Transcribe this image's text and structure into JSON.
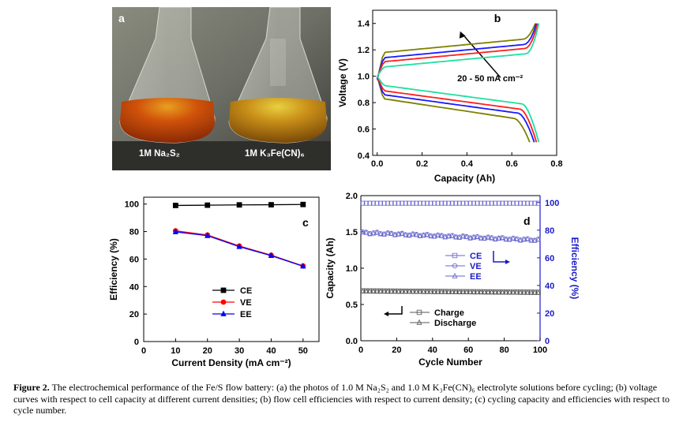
{
  "panel_a": {
    "letter": "a",
    "label_left": "1M Na₂S₂",
    "label_right": "1M K₃Fe(CN)₆",
    "left_liquid_color": "#c84a06",
    "right_liquid_color": "#c98f18"
  },
  "caption": {
    "fig_label": "Figure 2.",
    "text": "The electrochemical performance of the Fe/S flow battery: (a) the photos of 1.0 M Na₂S₂ and 1.0 M K₃Fe(CN)₆ electrolyte solutions before cycling; (b) voltage curves with respect to cell capacity at different current densities; (b) flow cell efficiencies with respect to current density; (c) cycling capacity and efficiencies with respect to cycle number."
  },
  "chart_data": [
    {
      "id": "b",
      "type": "line",
      "letter": "b",
      "xlabel": "Capacity (Ah)",
      "ylabel": "Voltage (V)",
      "xlim": [
        -0.02,
        0.8
      ],
      "ylim": [
        0.4,
        1.5
      ],
      "xticks": [
        "0.0",
        "0.2",
        "0.4",
        "0.6",
        "0.8"
      ],
      "yticks": [
        "0.4",
        "0.6",
        "0.8",
        "1.0",
        "1.2",
        "1.4"
      ],
      "annotation": "20 - 50 mA cm⁻²",
      "series": [
        {
          "color": "#808000",
          "charge_start": 0.97,
          "charge_plateau": 1.23,
          "charge_end_x": 0.705,
          "discharge_start": 0.83,
          "discharge_plateau": 0.68,
          "discharge_end": 0.5,
          "discharge_end_x": 0.68
        },
        {
          "color": "#1a1aff",
          "charge_start": 0.98,
          "charge_plateau": 1.19,
          "charge_end_x": 0.71,
          "discharge_start": 0.86,
          "discharge_plateau": 0.72,
          "discharge_end": 0.5,
          "discharge_end_x": 0.7
        },
        {
          "color": "#ff2020",
          "charge_start": 0.99,
          "charge_plateau": 1.16,
          "charge_end_x": 0.715,
          "discharge_start": 0.89,
          "discharge_plateau": 0.75,
          "discharge_end": 0.5,
          "discharge_end_x": 0.71
        },
        {
          "color": "#20e0a0",
          "charge_start": 1.0,
          "charge_plateau": 1.12,
          "charge_end_x": 0.72,
          "discharge_start": 0.93,
          "discharge_plateau": 0.79,
          "discharge_end": 0.5,
          "discharge_end_x": 0.72
        }
      ]
    },
    {
      "id": "c",
      "type": "line",
      "letter": "c",
      "xlabel": "Current Density (mA cm⁻²)",
      "ylabel": "Efficiency (%)",
      "xlim": [
        0,
        55
      ],
      "ylim": [
        0,
        105
      ],
      "xticks": [
        "0",
        "10",
        "20",
        "30",
        "40",
        "50"
      ],
      "yticks": [
        "0",
        "20",
        "40",
        "60",
        "80",
        "100"
      ],
      "x": [
        10,
        20,
        30,
        40,
        50
      ],
      "series": [
        {
          "name": "CE",
          "color": "#000000",
          "marker": "square",
          "values": [
            99.0,
            99.2,
            99.4,
            99.5,
            99.7
          ]
        },
        {
          "name": "VE",
          "color": "#ff0000",
          "marker": "circle",
          "values": [
            80.5,
            77.5,
            69.5,
            62.8,
            55.0
          ]
        },
        {
          "name": "EE",
          "color": "#0000ff",
          "marker": "triangle",
          "values": [
            79.8,
            77.0,
            69.0,
            62.5,
            54.8
          ]
        }
      ]
    },
    {
      "id": "d",
      "type": "scatter",
      "letter": "d",
      "xlabel": "Cycle Number",
      "ylabel": "Capacity (Ah)",
      "y2label": "Efficiency (%)",
      "xlim": [
        0,
        100
      ],
      "ylim": [
        0,
        2.0
      ],
      "y2lim": [
        0,
        105
      ],
      "xticks": [
        "0",
        "20",
        "40",
        "60",
        "80",
        "100"
      ],
      "yticks": [
        "0.0",
        "0.5",
        "1.0",
        "1.5",
        "2.0"
      ],
      "y2ticks": [
        "0",
        "20",
        "40",
        "60",
        "80",
        "100"
      ],
      "series": [
        {
          "name": "CE",
          "axis": "right",
          "color": "#6666cc",
          "marker": "square",
          "start": 99.5,
          "end": 99.5
        },
        {
          "name": "VE",
          "axis": "right",
          "color": "#6666cc",
          "marker": "circle",
          "start": 78.5,
          "end": 73.0
        },
        {
          "name": "EE",
          "axis": "right",
          "color": "#6666cc",
          "marker": "triangle",
          "start": 78.0,
          "end": 72.5
        },
        {
          "name": "Charge",
          "axis": "left",
          "color": "#555555",
          "marker": "square",
          "start": 0.69,
          "end": 0.67
        },
        {
          "name": "Discharge",
          "axis": "left",
          "color": "#555555",
          "marker": "triangle",
          "start": 0.68,
          "end": 0.66
        }
      ]
    }
  ]
}
